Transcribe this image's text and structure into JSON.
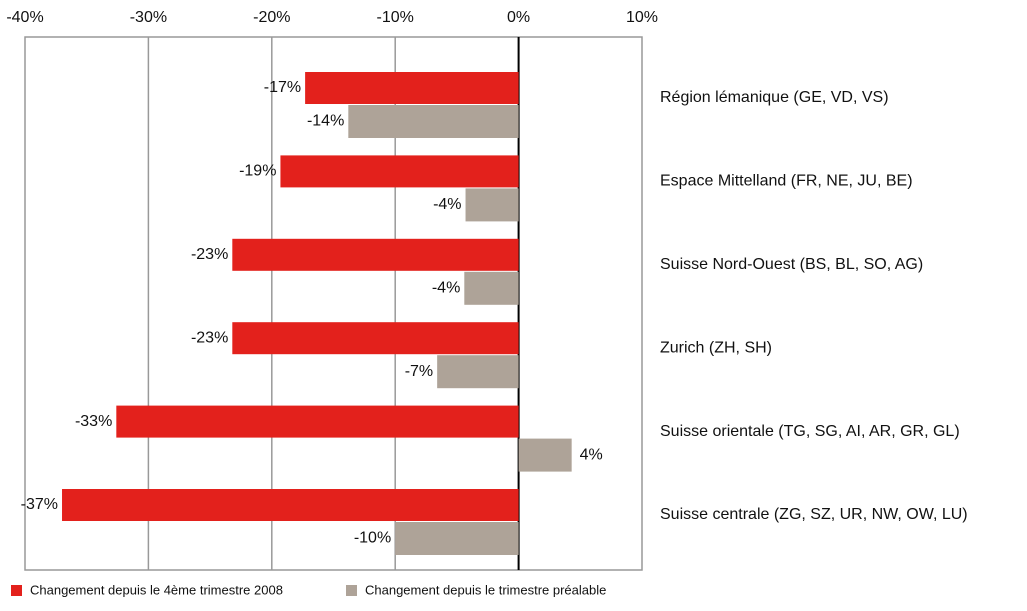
{
  "chart_data": {
    "type": "hbar",
    "categories": [
      "Région lémanique (GE, VD, VS)",
      "Espace Mittelland (FR, NE, JU, BE)",
      "Suisse Nord-Ouest (BS, BL, SO, AG)",
      "Zurich (ZH, SH)",
      "Suisse orientale (TG, SG, AI, AR, GR, GL)",
      "Suisse centrale (ZG, SZ, UR, NW, OW, LU)"
    ],
    "series": [
      {
        "name": "Changement depuis le 4ème trimestre 2008",
        "color": "#e3211c",
        "values": [
          -17.3,
          -19.3,
          -23.2,
          -23.2,
          -32.6,
          -37
        ],
        "value_labels": [
          "-17%",
          "-19%",
          "-23%",
          "-23%",
          "-33%",
          "-37%"
        ]
      },
      {
        "name": "Changement depuis le trimestre préalable",
        "color": "#aea398",
        "values": [
          -13.8,
          -4.3,
          -4.4,
          -6.6,
          4.3,
          -10
        ],
        "value_labels": [
          "-14%",
          "-4%",
          "-4%",
          "-7%",
          "4%",
          "-10%"
        ]
      }
    ],
    "xlim": [
      -40,
      10
    ],
    "xticks": [
      {
        "value": -40,
        "label": "-40%"
      },
      {
        "value": -30,
        "label": "-30%"
      },
      {
        "value": -20,
        "label": "-20%"
      },
      {
        "value": -10,
        "label": "-10%"
      },
      {
        "value": 0,
        "label": "0%"
      },
      {
        "value": 10,
        "label": "10%"
      }
    ],
    "grid": true
  }
}
